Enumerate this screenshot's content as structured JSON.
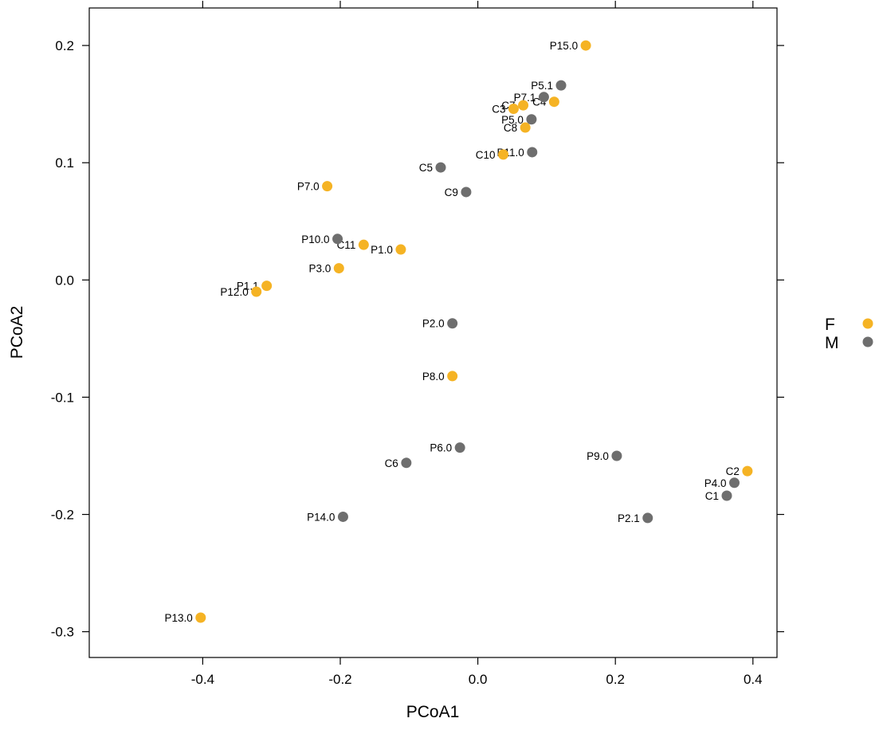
{
  "chart_data": {
    "type": "scatter",
    "title": "",
    "xlabel": "PCoA1",
    "ylabel": "PCoA2",
    "xlim": [
      -0.565,
      0.435
    ],
    "ylim": [
      -0.322,
      0.232
    ],
    "grid": false,
    "legend_position": "right",
    "xticks": [
      -0.4,
      -0.2,
      0.0,
      0.2,
      0.4
    ],
    "xtick_labels": [
      "-0.4",
      "-0.2",
      "0.0",
      "0.2",
      "0.4"
    ],
    "yticks": [
      0.2,
      0.1,
      0.0,
      -0.1,
      -0.2,
      -0.3
    ],
    "ytick_labels": [
      "0.2",
      "0.1",
      "0.0",
      "-0.1",
      "-0.2",
      "-0.3"
    ],
    "series": [
      {
        "name": "F",
        "color": "#F5B324",
        "points": [
          {
            "label": "P15.0",
            "x": 0.157,
            "y": 0.2
          },
          {
            "label": "C4",
            "x": 0.111,
            "y": 0.152
          },
          {
            "label": "C7",
            "x": 0.066,
            "y": 0.149
          },
          {
            "label": "C3",
            "x": 0.052,
            "y": 0.146
          },
          {
            "label": "C8",
            "x": 0.069,
            "y": 0.13
          },
          {
            "label": "C10",
            "x": 0.037,
            "y": 0.107
          },
          {
            "label": "P7.0",
            "x": -0.219,
            "y": 0.08
          },
          {
            "label": "C11",
            "x": -0.166,
            "y": 0.03
          },
          {
            "label": "P1.0",
            "x": -0.112,
            "y": 0.026
          },
          {
            "label": "P3.0",
            "x": -0.202,
            "y": 0.01
          },
          {
            "label": "P1.1",
            "x": -0.307,
            "y": -0.005
          },
          {
            "label": "P12.0",
            "x": -0.322,
            "y": -0.01
          },
          {
            "label": "P8.0",
            "x": -0.037,
            "y": -0.082
          },
          {
            "label": "C2",
            "x": 0.392,
            "y": -0.163
          },
          {
            "label": "P13.0",
            "x": -0.403,
            "y": -0.288
          }
        ]
      },
      {
        "name": "M",
        "color": "#6E6E6E",
        "points": [
          {
            "label": "P5.1",
            "x": 0.121,
            "y": 0.166
          },
          {
            "label": "P7.1",
            "x": 0.096,
            "y": 0.156
          },
          {
            "label": "P5.0",
            "x": 0.078,
            "y": 0.137
          },
          {
            "label": "P11.0",
            "x": 0.079,
            "y": 0.109
          },
          {
            "label": "C5",
            "x": -0.054,
            "y": 0.096
          },
          {
            "label": "C9",
            "x": -0.017,
            "y": 0.075
          },
          {
            "label": "P10.0",
            "x": -0.204,
            "y": 0.035
          },
          {
            "label": "P2.0",
            "x": -0.037,
            "y": -0.037
          },
          {
            "label": "P6.0",
            "x": -0.026,
            "y": -0.143
          },
          {
            "label": "C6",
            "x": -0.104,
            "y": -0.156
          },
          {
            "label": "P9.0",
            "x": 0.202,
            "y": -0.15
          },
          {
            "label": "P4.0",
            "x": 0.373,
            "y": -0.173
          },
          {
            "label": "C1",
            "x": 0.362,
            "y": -0.184
          },
          {
            "label": "P14.0",
            "x": -0.196,
            "y": -0.202
          },
          {
            "label": "P2.1",
            "x": 0.247,
            "y": -0.203
          }
        ]
      }
    ]
  }
}
